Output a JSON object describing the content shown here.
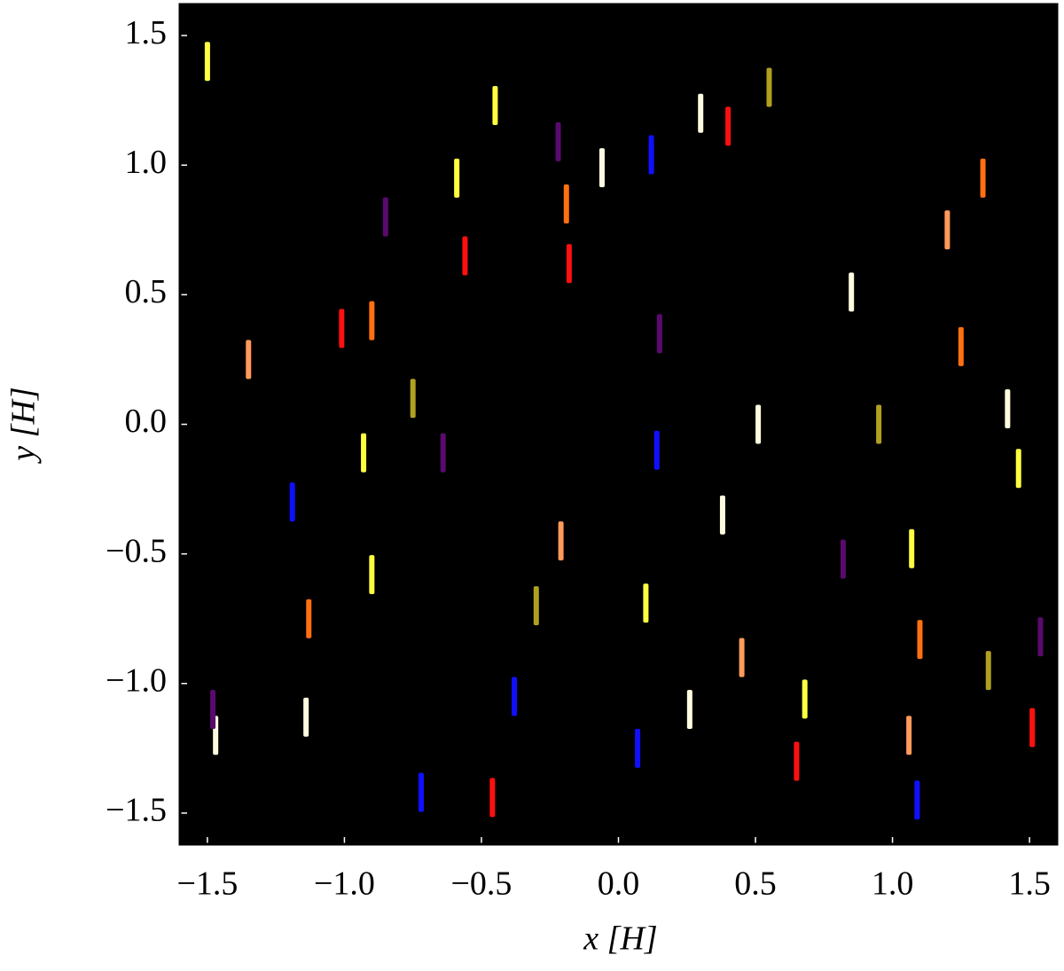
{
  "chart_data": {
    "type": "scatter",
    "x_label": "x [H]",
    "y_label": "y [H]",
    "xlim": [
      -1.6,
      1.6
    ],
    "ylim": [
      -1.62,
      1.62
    ],
    "xticks": [
      {
        "value": -1.5,
        "label": "−1.5"
      },
      {
        "value": -1,
        "label": "−1.0"
      },
      {
        "value": -0.5,
        "label": "−0.5"
      },
      {
        "value": 0,
        "label": "0.0"
      },
      0.5,
      {
        "value": 1,
        "label": "1.0"
      },
      1.5
    ],
    "yticks": [
      {
        "value": -1.5,
        "label": "−1.5"
      },
      {
        "value": -1,
        "label": "−1.0"
      },
      {
        "value": -0.5,
        "label": "−0.5"
      },
      {
        "value": 0,
        "label": "0.0"
      },
      0.5,
      {
        "value": 1,
        "label": "1.0"
      },
      1.5
    ],
    "background": "#000000",
    "series": [
      {
        "color": "#1010ff",
        "x": [
          -1.19,
          0.12,
          -0.38,
          0.07,
          -0.72,
          1.09,
          0.14
        ],
        "values": [
          -0.3,
          1.04,
          -1.05,
          -1.25,
          -1.42,
          -1.45,
          -0.1
        ]
      },
      {
        "color": "#fffbe0",
        "x": [
          -1.47,
          -0.06,
          0.3,
          0.51,
          0.85,
          -1.14,
          0.26,
          0.38,
          1.42
        ],
        "values": [
          -1.2,
          0.99,
          1.2,
          0.0,
          0.51,
          -1.13,
          -1.1,
          -0.35,
          0.06
        ]
      },
      {
        "color": "#ffff40",
        "x": [
          -0.93,
          1.07,
          0.1,
          0.68,
          -0.59,
          -0.45,
          -0.9,
          -1.5,
          1.46
        ],
        "values": [
          -0.11,
          -0.48,
          -0.69,
          -1.06,
          0.95,
          1.23,
          -0.58,
          1.4,
          -0.17
        ]
      },
      {
        "color": "#ff7010",
        "x": [
          1.1,
          -1.13,
          1.33,
          1.25,
          -0.19,
          -0.9
        ],
        "values": [
          -0.83,
          -0.75,
          0.95,
          0.3,
          0.85,
          0.4
        ]
      },
      {
        "color": "#ff1010",
        "x": [
          -1.01,
          -0.56,
          1.51,
          0.65,
          -0.46,
          0.4,
          -0.18
        ],
        "values": [
          0.37,
          0.65,
          -1.17,
          -1.3,
          -1.44,
          1.15,
          0.62
        ]
      },
      {
        "color": "#5a0a6e",
        "x": [
          -1.48,
          -0.64,
          1.54,
          -0.22,
          0.82,
          0.15,
          -0.85
        ],
        "values": [
          -1.1,
          -0.11,
          -0.82,
          1.09,
          -0.52,
          0.35,
          0.8
        ]
      },
      {
        "color": "#ff9a5a",
        "x": [
          1.06,
          -0.21,
          -1.35,
          0.45,
          1.2
        ],
        "values": [
          -1.2,
          -0.45,
          0.25,
          -0.9,
          0.75
        ]
      },
      {
        "color": "#b0a020",
        "x": [
          -0.75,
          0.55,
          1.35,
          -0.3,
          0.95
        ],
        "values": [
          0.1,
          1.3,
          -0.95,
          -0.7,
          0.0
        ]
      }
    ]
  }
}
